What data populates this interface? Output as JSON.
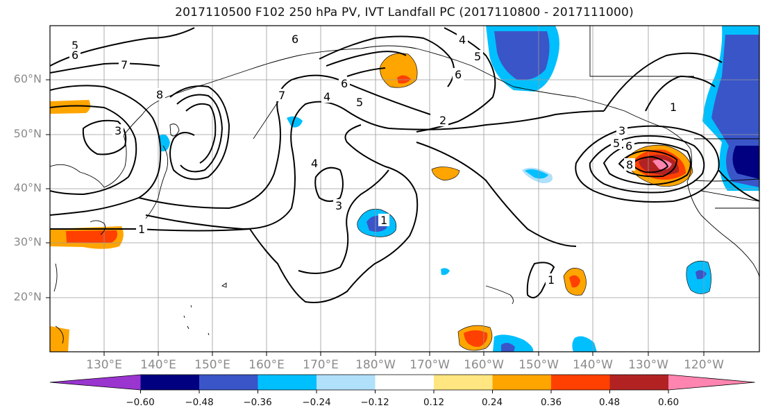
{
  "title": "2017110500 F102 250 hPa PV, IVT Landfall PC (2017110800 - 2017111000)",
  "lat_labels": [
    "60°N",
    "50°N",
    "40°N",
    "30°N",
    "20°N"
  ],
  "lon_labels": [
    "130°E",
    "140°E",
    "150°E",
    "160°E",
    "170°E",
    "180°W",
    "170°W",
    "160°W",
    "150°W",
    "140°W",
    "130°W",
    "120°W"
  ],
  "colorbar": {
    "ticks": [
      "−0.60",
      "−0.48",
      "−0.36",
      "−0.24",
      "−0.12",
      "0.12",
      "0.24",
      "0.36",
      "0.48",
      "0.60"
    ],
    "colors": [
      "#9a35d0",
      "#000080",
      "#3a55c8",
      "#00bfff",
      "#b0e0fa",
      "#ffffff",
      "#ffe680",
      "#ffa500",
      "#ff4000",
      "#b22222",
      "#ff85b0"
    ]
  },
  "contour_labels": [
    "1",
    "2",
    "3",
    "4",
    "5",
    "6",
    "7",
    "8"
  ]
}
